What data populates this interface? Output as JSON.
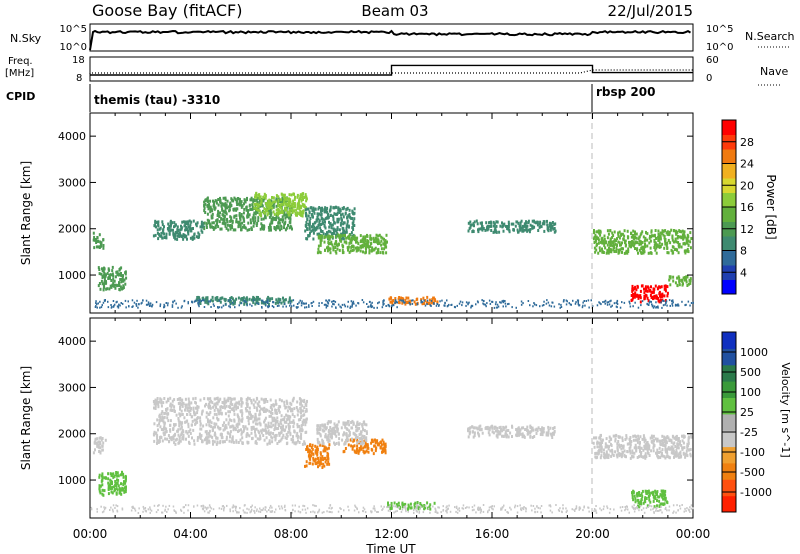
{
  "header": {
    "station": "Goose Bay (fitACF)",
    "beam": "Beam 03",
    "date": "22/Jul/2015"
  },
  "strip_panels": {
    "nsky_label": "N.Sky",
    "nsky_ticks": [
      "10^5",
      "10^0"
    ],
    "nsearch_label": "N.Search",
    "nsearch_ticks": [
      "10^5",
      "10^0"
    ],
    "freq_label": "Freq.",
    "freq_unit": "[MHz]",
    "freq_ticks": [
      "18",
      "8"
    ],
    "nave_label": "Nave",
    "nave_ticks": [
      "60",
      "0"
    ],
    "cpid_label": "CPID",
    "cpid_segments": [
      {
        "label": "themis (tau) -3310",
        "start_hour": 0
      },
      {
        "label": "rbsp 200",
        "start_hour": 20
      }
    ],
    "freq_steps": [
      {
        "start": 0,
        "end": 12,
        "freq": 10.5
      },
      {
        "start": 12,
        "end": 20,
        "freq": 14.5
      },
      {
        "start": 20,
        "end": 24,
        "freq": 11.5
      }
    ]
  },
  "chart_data": [
    {
      "type": "heatmap",
      "parameter": "power",
      "xlabel": "",
      "ylabel": "Slant Range [km]",
      "xlim": [
        0,
        24
      ],
      "ylim": [
        180,
        4500
      ],
      "y_ticks": [
        "1000",
        "2000",
        "3000",
        "4000"
      ],
      "colorbar": {
        "label": "Power [dB]",
        "ticks": [
          "4",
          "8",
          "12",
          "16",
          "20",
          "24",
          "28"
        ],
        "colors": [
          "#0000ff",
          "#1f3fb0",
          "#2f6b9a",
          "#3e8a70",
          "#4c9a52",
          "#62b03c",
          "#8ccc3a",
          "#d8d830",
          "#f0b020",
          "#f07a10",
          "#ff3a0a",
          "#ff0000"
        ]
      },
      "echo_regions": [
        {
          "x": [
            0.1,
            0.5
          ],
          "range": [
            1600,
            1950
          ],
          "level": 4
        },
        {
          "x": [
            0.3,
            1.4
          ],
          "range": [
            700,
            1200
          ],
          "level": 4
        },
        {
          "x": [
            2.5,
            4.5
          ],
          "range": [
            1800,
            2200
          ],
          "level": 3
        },
        {
          "x": [
            4.5,
            8.0
          ],
          "range": [
            2000,
            2700
          ],
          "level": 4
        },
        {
          "x": [
            6.5,
            8.6
          ],
          "range": [
            2300,
            2800
          ],
          "level": 6
        },
        {
          "x": [
            8.5,
            10.5
          ],
          "range": [
            1800,
            2500
          ],
          "level": 3
        },
        {
          "x": [
            9.0,
            11.8
          ],
          "range": [
            1500,
            1900
          ],
          "level": 5
        },
        {
          "x": [
            4.0,
            8.0
          ],
          "range": [
            400,
            550
          ],
          "level": 3
        },
        {
          "x": [
            11.8,
            13.8
          ],
          "range": [
            400,
            550
          ],
          "level": 9
        },
        {
          "x": [
            15.0,
            18.5
          ],
          "range": [
            1950,
            2200
          ],
          "level": 3
        },
        {
          "x": [
            20.0,
            23.9
          ],
          "range": [
            1500,
            2000
          ],
          "level": 5
        },
        {
          "x": [
            21.5,
            23.0
          ],
          "range": [
            450,
            800
          ],
          "level": 11
        },
        {
          "x": [
            23.0,
            23.9
          ],
          "range": [
            800,
            1000
          ],
          "level": 5
        }
      ]
    },
    {
      "type": "heatmap",
      "parameter": "velocity",
      "xlabel": "Time UT",
      "ylabel": "Slant Range [km]",
      "xlim": [
        0,
        24
      ],
      "ylim": [
        180,
        4500
      ],
      "x_ticks": [
        "00:00",
        "04:00",
        "08:00",
        "12:00",
        "16:00",
        "20:00",
        "00:00"
      ],
      "y_ticks": [
        "1000",
        "2000",
        "3000",
        "4000"
      ],
      "colorbar": {
        "label": "Velocity [m s^-1]",
        "ticks": [
          "1000",
          "500",
          "100",
          "25",
          "-25",
          "-100",
          "-500",
          "-1000"
        ],
        "colors": [
          "#1030c0",
          "#2050a0",
          "#2a7a4a",
          "#3a9a3a",
          "#60c040",
          "#b0b0b0",
          "#c8c8c8",
          "#f0a030",
          "#f08010",
          "#ff5010",
          "#ff2000"
        ]
      },
      "echo_regions": [
        {
          "x": [
            0.1,
            0.6
          ],
          "range": [
            1600,
            1950
          ],
          "level": "ground"
        },
        {
          "x": [
            0.3,
            1.4
          ],
          "range": [
            700,
            1200
          ],
          "level": "positive"
        },
        {
          "x": [
            2.5,
            8.6
          ],
          "range": [
            1800,
            2800
          ],
          "level": "ground"
        },
        {
          "x": [
            8.5,
            9.5
          ],
          "range": [
            1300,
            1800
          ],
          "level": "negative"
        },
        {
          "x": [
            10.0,
            11.8
          ],
          "range": [
            1600,
            1900
          ],
          "level": "negative"
        },
        {
          "x": [
            9.0,
            11.0
          ],
          "range": [
            1800,
            2300
          ],
          "level": "ground"
        },
        {
          "x": [
            15.0,
            18.5
          ],
          "range": [
            1950,
            2200
          ],
          "level": "ground"
        },
        {
          "x": [
            20.0,
            23.9
          ],
          "range": [
            1500,
            2000
          ],
          "level": "ground"
        },
        {
          "x": [
            21.5,
            23.0
          ],
          "range": [
            450,
            800
          ],
          "level": "positive"
        },
        {
          "x": [
            11.8,
            13.8
          ],
          "range": [
            400,
            550
          ],
          "level": "positive"
        }
      ]
    }
  ]
}
